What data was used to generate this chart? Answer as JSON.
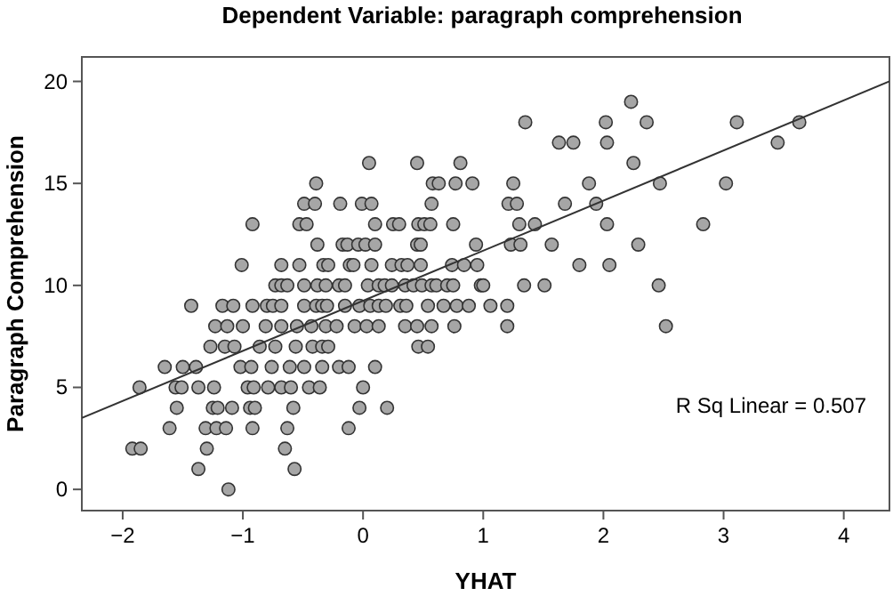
{
  "chart_data": {
    "type": "scatter",
    "title": "Dependent Variable: paragraph comprehension",
    "xlabel": "YHAT",
    "ylabel": "Paragraph Comprehension",
    "xlim": [
      -2.34,
      4.38
    ],
    "ylim": [
      -1.04,
      21.2
    ],
    "xticks": [
      -2,
      -1,
      0,
      1,
      2,
      3,
      4
    ],
    "yticks": [
      0,
      5,
      10,
      15,
      20
    ],
    "grid": false,
    "annotations": [
      "R Sq Linear = 0.507"
    ],
    "series": [
      {
        "marker": "circle",
        "color": "#a6a6a6",
        "x": [
          2.23,
          1.35,
          2.02,
          2.36,
          3.11,
          3.63,
          1.63,
          1.75,
          2.03,
          3.45,
          0.05,
          0.45,
          0.81,
          2.25,
          -0.39,
          0.58,
          0.63,
          0.77,
          0.91,
          1.25,
          1.88,
          2.47,
          3.02,
          -0.49,
          -0.4,
          -0.19,
          -0.01,
          0.07,
          0.57,
          1.21,
          1.28,
          1.68,
          1.94,
          -0.92,
          -0.53,
          -0.47,
          0.1,
          0.25,
          0.3,
          0.46,
          0.51,
          0.56,
          0.75,
          1.3,
          1.43,
          2.03,
          2.83,
          -0.38,
          -0.17,
          -0.13,
          -0.04,
          0.02,
          0.1,
          0.45,
          0.48,
          0.94,
          1.23,
          1.31,
          1.57,
          2.29,
          -1.01,
          -0.68,
          -0.53,
          -0.33,
          -0.29,
          -0.11,
          -0.08,
          0.07,
          0.24,
          0.32,
          0.37,
          0.48,
          0.74,
          0.84,
          0.95,
          1.8,
          2.05,
          -0.73,
          -0.68,
          -0.63,
          -0.49,
          -0.38,
          -0.31,
          -0.2,
          -0.15,
          0.04,
          0.13,
          0.18,
          0.24,
          0.35,
          0.42,
          0.49,
          0.57,
          0.61,
          0.7,
          0.75,
          0.98,
          1.0,
          1.34,
          1.51,
          2.46,
          -1.43,
          -1.17,
          -1.08,
          -0.92,
          -0.8,
          -0.75,
          -0.68,
          -0.49,
          -0.39,
          -0.34,
          -0.3,
          -0.15,
          -0.03,
          0.06,
          0.13,
          0.19,
          0.31,
          0.36,
          0.54,
          0.67,
          0.78,
          0.88,
          1.06,
          1.2,
          -1.23,
          -1.13,
          -1.0,
          -0.81,
          -0.68,
          -0.55,
          -0.43,
          -0.31,
          -0.22,
          -0.07,
          0.03,
          0.13,
          0.35,
          0.45,
          0.57,
          0.76,
          1.2,
          2.52,
          -1.27,
          -1.15,
          -1.07,
          -0.86,
          -0.73,
          -0.56,
          -0.42,
          -0.34,
          -0.29,
          0.46,
          0.54,
          -1.65,
          -1.5,
          -1.39,
          -1.02,
          -0.93,
          -0.76,
          -0.61,
          -0.49,
          -0.34,
          -0.2,
          -0.12,
          0.1,
          -1.86,
          -1.56,
          -1.51,
          -1.37,
          -1.24,
          -0.96,
          -0.91,
          -0.79,
          -0.68,
          -0.6,
          -0.45,
          -0.36,
          0.0,
          -1.55,
          -1.25,
          -1.21,
          -1.09,
          -0.94,
          -0.9,
          -0.58,
          -0.03,
          0.2,
          -1.61,
          -1.31,
          -1.22,
          -1.14,
          -0.92,
          -0.63,
          -0.12,
          -1.92,
          -1.85,
          -1.3,
          -0.65,
          -1.37,
          -0.57,
          -1.12
        ],
        "values": [
          19,
          18,
          18,
          18,
          18,
          18,
          17,
          17,
          17,
          17,
          16,
          16,
          16,
          16,
          15,
          15,
          15,
          15,
          15,
          15,
          15,
          15,
          15,
          14,
          14,
          14,
          14,
          14,
          14,
          14,
          14,
          14,
          14,
          13,
          13,
          13,
          13,
          13,
          13,
          13,
          13,
          13,
          13,
          13,
          13,
          13,
          13,
          12,
          12,
          12,
          12,
          12,
          12,
          12,
          12,
          12,
          12,
          12,
          12,
          12,
          11,
          11,
          11,
          11,
          11,
          11,
          11,
          11,
          11,
          11,
          11,
          11,
          11,
          11,
          11,
          11,
          11,
          10,
          10,
          10,
          10,
          10,
          10,
          10,
          10,
          10,
          10,
          10,
          10,
          10,
          10,
          10,
          10,
          10,
          10,
          10,
          10,
          10,
          10,
          10,
          10,
          9,
          9,
          9,
          9,
          9,
          9,
          9,
          9,
          9,
          9,
          9,
          9,
          9,
          9,
          9,
          9,
          9,
          9,
          9,
          9,
          9,
          9,
          9,
          9,
          8,
          8,
          8,
          8,
          8,
          8,
          8,
          8,
          8,
          8,
          8,
          8,
          8,
          8,
          8,
          8,
          8,
          8,
          7,
          7,
          7,
          7,
          7,
          7,
          7,
          7,
          7,
          7,
          7,
          6,
          6,
          6,
          6,
          6,
          6,
          6,
          6,
          6,
          6,
          6,
          6,
          5,
          5,
          5,
          5,
          5,
          5,
          5,
          5,
          5,
          5,
          5,
          5,
          5,
          4,
          4,
          4,
          4,
          4,
          4,
          4,
          4,
          4,
          3,
          3,
          3,
          3,
          3,
          3,
          3,
          2,
          2,
          2,
          2,
          1,
          1,
          0
        ]
      },
      {
        "type": "line",
        "color": "#333333",
        "x": [
          -2.34,
          4.38
        ],
        "values": [
          3.5,
          20.0
        ]
      }
    ]
  }
}
